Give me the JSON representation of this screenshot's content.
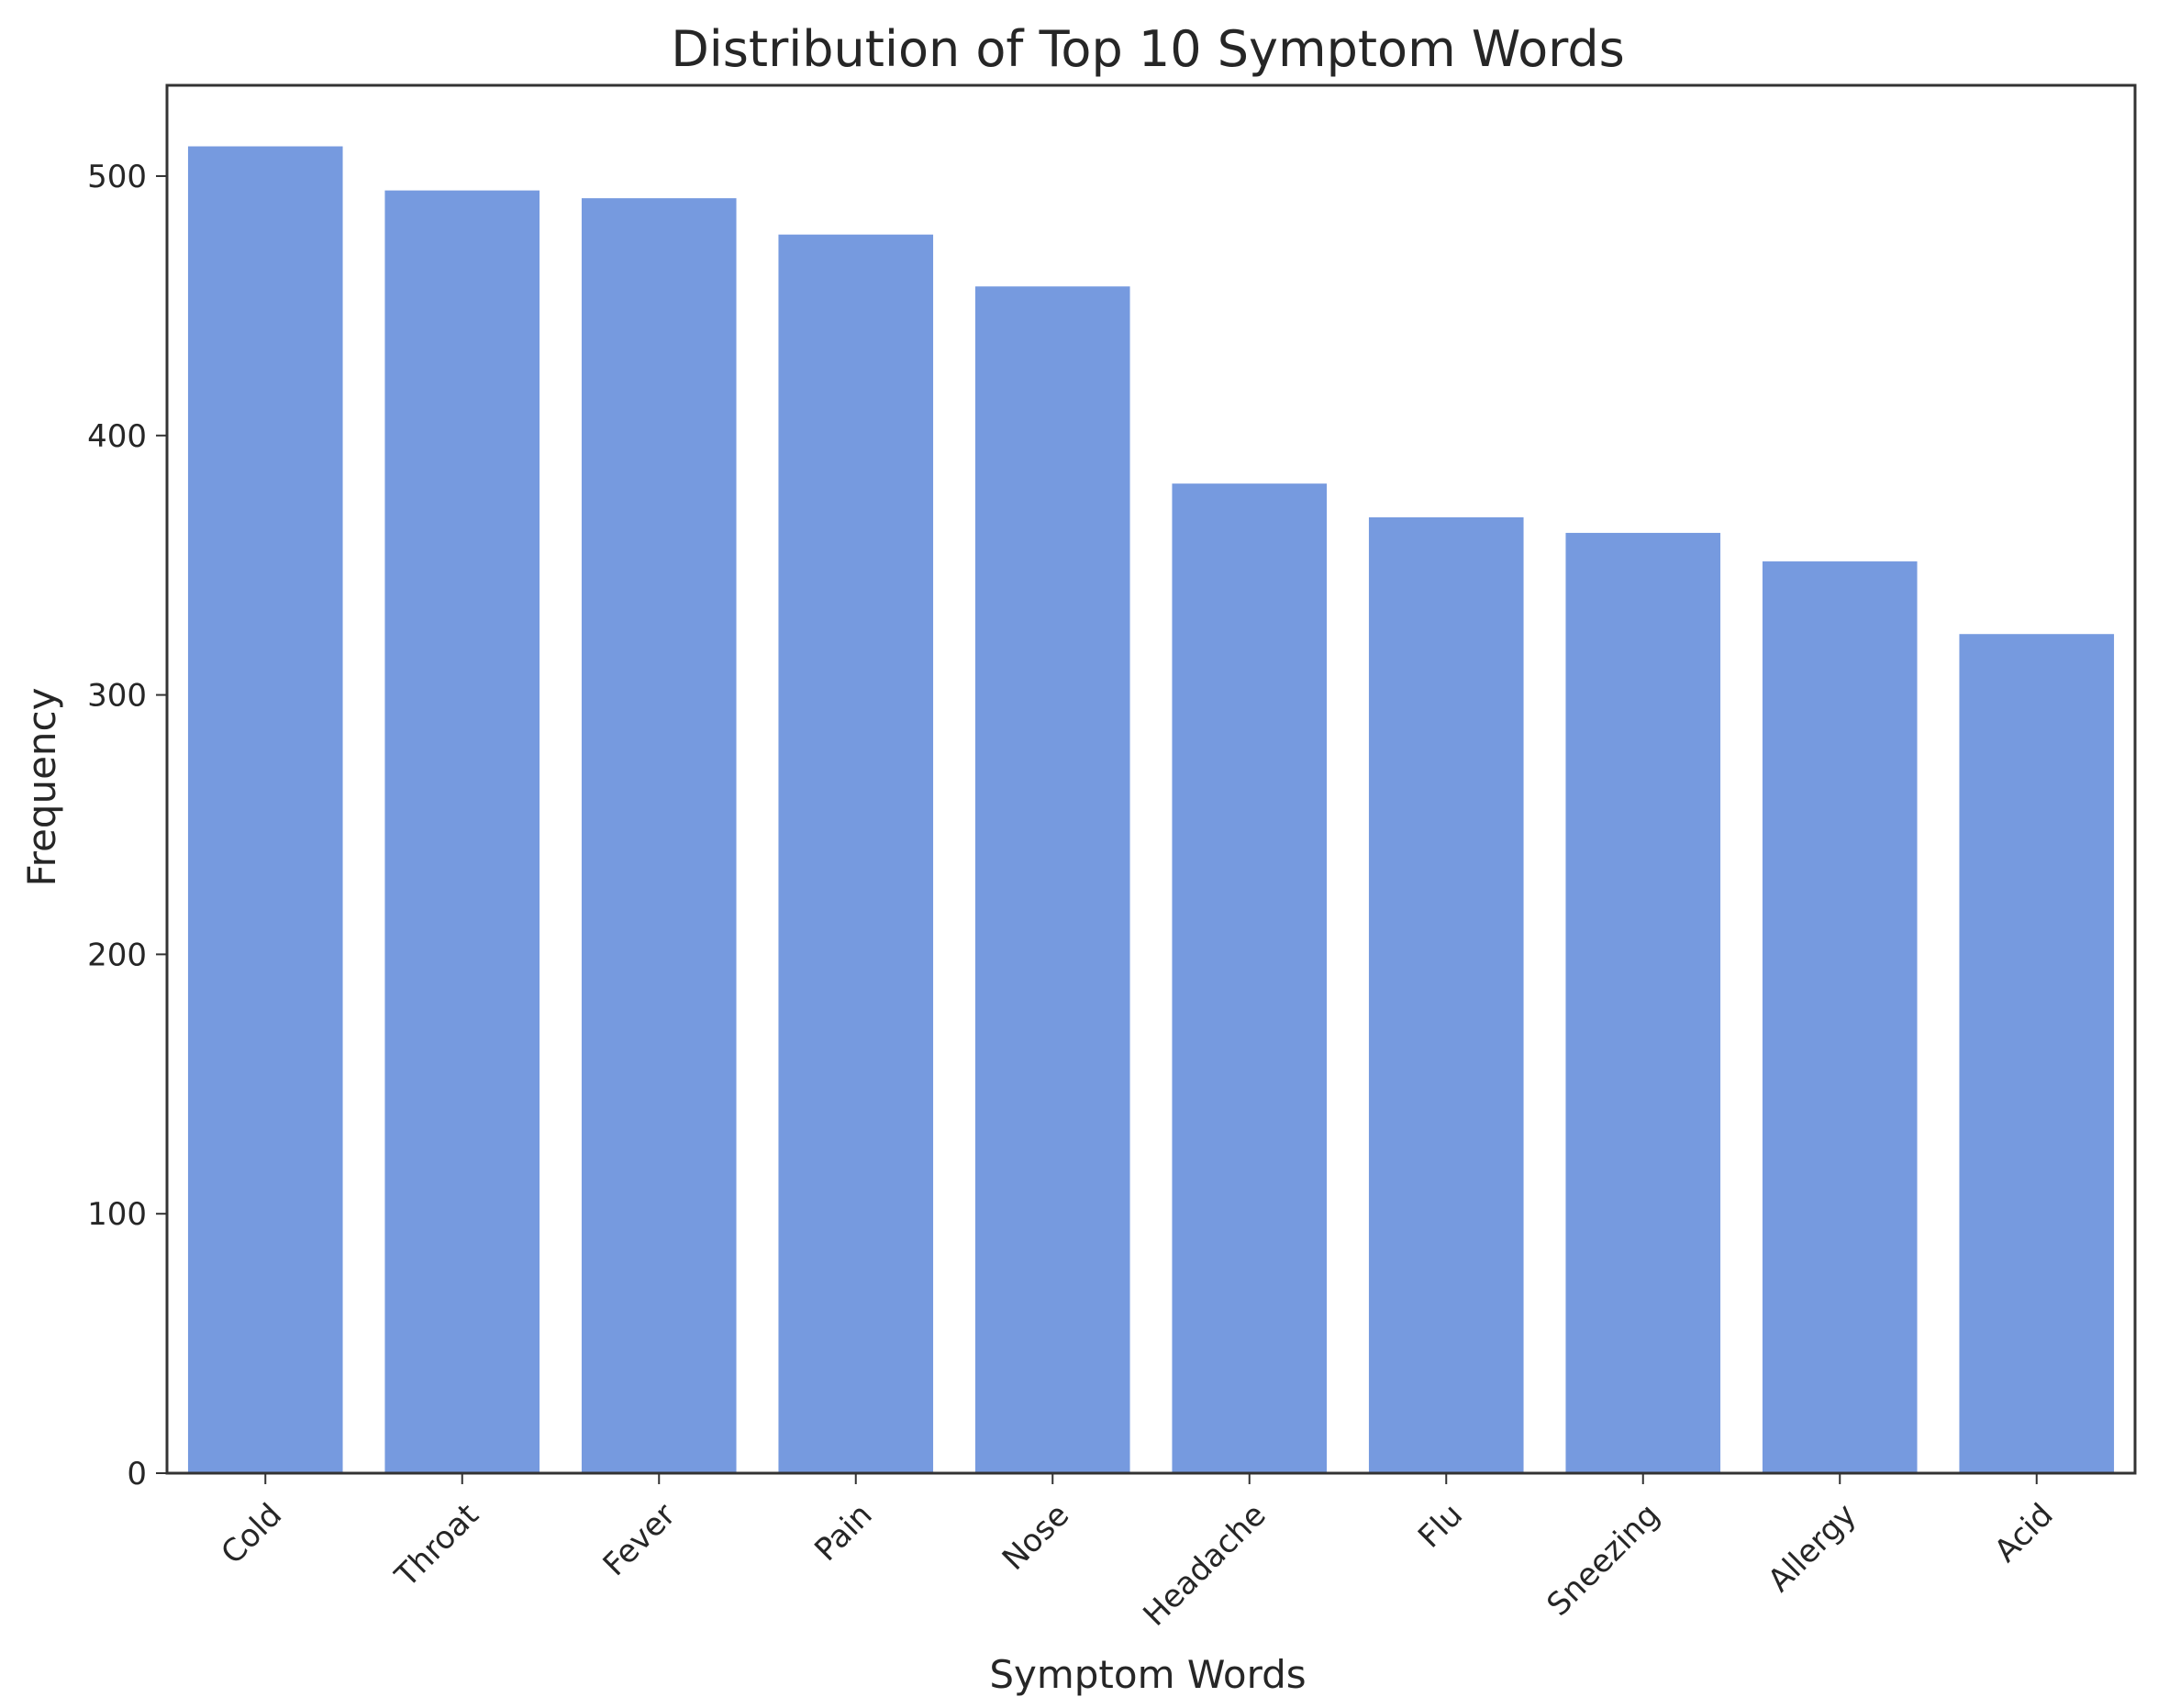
{
  "chart_data": {
    "type": "bar",
    "title": "Distribution of Top 10 Symptom Words",
    "xlabel": "Symptom Words",
    "ylabel": "Frequency",
    "categories": [
      "Cold",
      "Throat",
      "Fever",
      "Pain",
      "Nose",
      "Headache",
      "Flu",
      "Sneezing",
      "Allergy",
      "Acid"
    ],
    "values": [
      512,
      495,
      492,
      478,
      458,
      382,
      369,
      363,
      352,
      324
    ],
    "ylim": [
      0,
      535
    ],
    "yticks": [
      0,
      100,
      200,
      300,
      400,
      500
    ],
    "bar_color": "#769ADF",
    "bar_edge_color": "#ffffff",
    "grid": false,
    "legend": "none"
  }
}
